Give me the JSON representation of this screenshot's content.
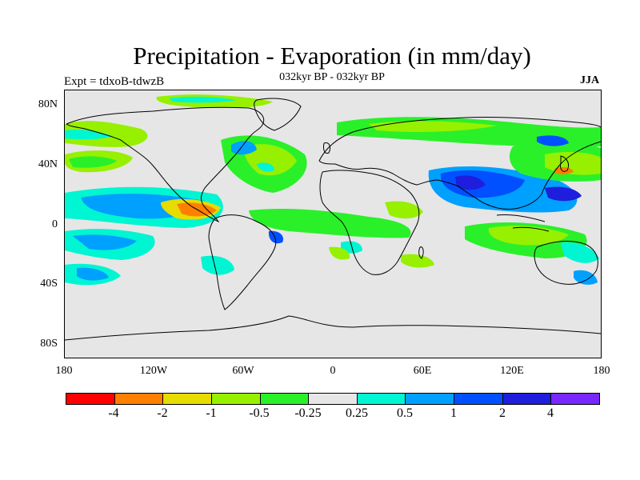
{
  "title": "Precipitation - Evaporation (in mm/day)",
  "subtitle": "032kyr BP - 032kyr BP",
  "experiment": "Expt = tdxoB-tdwzB",
  "season": "JJA",
  "map": {
    "projection": "cylindrical-equidistant",
    "background_color": "#e6e6e6",
    "lat_ticks": [
      "80N",
      "40N",
      "0",
      "40S",
      "80S"
    ],
    "lon_ticks": [
      "180",
      "120W",
      "60W",
      "0",
      "60E",
      "120E",
      "180"
    ]
  },
  "colorbar": {
    "colors": [
      "#ff0000",
      "#ff8000",
      "#e6dc00",
      "#96f000",
      "#2af02a",
      "#e6e6e6",
      "#00f5d2",
      "#00a0ff",
      "#0050ff",
      "#1e1edc",
      "#7828ff"
    ],
    "labels": [
      "-4",
      "-2",
      "-1",
      "-0.5",
      "-0.25",
      "0.25",
      "0.5",
      "1",
      "2",
      "4"
    ]
  }
}
